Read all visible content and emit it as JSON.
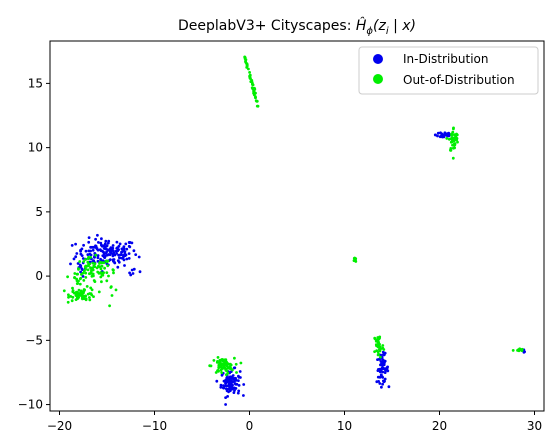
{
  "chart_data": {
    "type": "scatter",
    "title_prefix": "DeeplabV3+ Cityscapes: ",
    "title_math": "Ĥ",
    "title_sub": "ϕ",
    "title_suffix_a": "(z",
    "title_suffix_sub": "i",
    "title_suffix_b": " | x)",
    "xlabel": "",
    "ylabel": "",
    "xlim": [
      -21,
      31
    ],
    "ylim": [
      -10.5,
      18.3
    ],
    "x_ticks": [
      -20,
      -10,
      0,
      10,
      20,
      30
    ],
    "x_tick_labels": [
      "−20",
      "−10",
      "0",
      "10",
      "20",
      "30"
    ],
    "y_ticks": [
      -10,
      -5,
      0,
      5,
      10,
      15
    ],
    "y_tick_labels": [
      "−10",
      "−5",
      "0",
      "5",
      "10",
      "15"
    ],
    "grid": false,
    "legend_position": "top-right",
    "series": [
      {
        "name": "In-Distribution",
        "color": "#0000ee",
        "clusters": [
          {
            "cx": -15.0,
            "cy": 1.8,
            "sx": 1.6,
            "sy": 0.55,
            "n": 170
          },
          {
            "cx": -17.8,
            "cy": 0.6,
            "sx": 0.3,
            "sy": 0.3,
            "n": 10
          },
          {
            "cx": -12.2,
            "cy": 0.4,
            "sx": 0.3,
            "sy": 0.15,
            "n": 6
          },
          {
            "cx": -2.0,
            "cy": -8.3,
            "sx": 0.5,
            "sy": 0.5,
            "n": 90
          },
          {
            "cx": 14.0,
            "cy": -7.2,
            "sx": 0.3,
            "sy": 0.55,
            "n": 60
          },
          {
            "cx": 20.5,
            "cy": 11.0,
            "sx": 0.45,
            "sy": 0.15,
            "n": 30
          },
          {
            "cx": 28.9,
            "cy": -5.9,
            "sx": 0.05,
            "sy": 0.05,
            "n": 3
          }
        ]
      },
      {
        "name": "Out-of-Distribution",
        "color": "#00ee00",
        "clusters": [
          {
            "cx": -16.5,
            "cy": 0.4,
            "sx": 1.0,
            "sy": 0.5,
            "n": 70
          },
          {
            "cx": -17.5,
            "cy": -1.4,
            "sx": 0.7,
            "sy": 0.25,
            "n": 60
          },
          {
            "cx": -18.2,
            "cy": -0.4,
            "sx": 0.3,
            "sy": 0.4,
            "n": 15
          },
          {
            "cx": -14.5,
            "cy": -0.3,
            "sx": 0.4,
            "sy": 0.5,
            "n": 10
          },
          {
            "cx": -2.8,
            "cy": -7.0,
            "sx": 0.6,
            "sy": 0.3,
            "n": 70
          },
          {
            "cx": 11.1,
            "cy": 1.25,
            "sx": 0.05,
            "sy": 0.12,
            "n": 8
          },
          {
            "cx": 13.6,
            "cy": -5.4,
            "sx": 0.25,
            "sy": 0.5,
            "n": 40
          },
          {
            "cx": 21.5,
            "cy": 10.6,
            "sx": 0.25,
            "sy": 0.5,
            "n": 45
          },
          {
            "cx": 28.3,
            "cy": -5.75,
            "sx": 0.25,
            "sy": 0.05,
            "n": 10
          }
        ],
        "segments": [
          {
            "x0": -0.5,
            "y0": 17.1,
            "x1": 0.9,
            "y1": 13.2,
            "n": 55
          }
        ]
      }
    ]
  }
}
